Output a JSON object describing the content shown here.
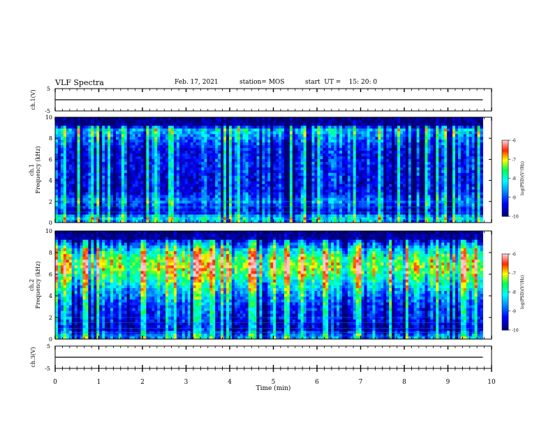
{
  "header": {
    "title": "VLF Spectra",
    "date": "Feb. 17, 2021",
    "station": "station= MOS",
    "start": "start  UT =    15: 20: 0"
  },
  "colors": {
    "spectrogram_background": "#000066",
    "trace": "#000000",
    "colormap": [
      "#00007f",
      "#0000ff",
      "#00ffff",
      "#00ff00",
      "#ffff00",
      "#ff0000",
      "#ffffff"
    ]
  },
  "chart_data": [
    {
      "type": "line",
      "panel": "ch1-voltage",
      "ylabel": "ch.1(V)",
      "yticks": [
        "5",
        "-5"
      ],
      "ylim": [
        -5,
        5
      ],
      "xlim": [
        0,
        10
      ],
      "series": [
        {
          "x": [
            0,
            9.8
          ],
          "values": [
            0,
            0
          ]
        }
      ]
    },
    {
      "type": "heatmap",
      "panel": "ch1-spectrogram",
      "ylabel_line1": "ch.1",
      "ylabel_line2": "Frequency (kHz)",
      "yticks": [
        "0",
        "2",
        "4",
        "6",
        "8",
        "10"
      ],
      "ylim": [
        0,
        10
      ],
      "xlim": [
        0,
        10
      ],
      "data_end_min": 9.8,
      "colorbar": {
        "label": "log(PSD)(V²/Hz)",
        "ticks": [
          "-6",
          "-7",
          "-8",
          "-9",
          "-10"
        ],
        "range": [
          -10,
          -6
        ]
      },
      "band_profile_khz": [
        [
          0,
          -8.5
        ],
        [
          0.5,
          -8.2
        ],
        [
          1,
          -9.6
        ],
        [
          2,
          -8.8
        ],
        [
          3,
          -9.5
        ],
        [
          5,
          -9.4
        ],
        [
          7,
          -9.4
        ],
        [
          8,
          -8.9
        ],
        [
          8.8,
          -8.4
        ],
        [
          9.3,
          -9.9
        ],
        [
          10,
          -10
        ]
      ]
    },
    {
      "type": "heatmap",
      "panel": "ch2-spectrogram",
      "ylabel_line1": "ch.2",
      "ylabel_line2": "Frequency (kHz)",
      "yticks": [
        "0",
        "2",
        "4",
        "6",
        "8",
        "10"
      ],
      "ylim": [
        0,
        10
      ],
      "xlim": [
        0,
        10
      ],
      "data_end_min": 9.8,
      "colorbar": {
        "label": "log(PSD)(V²/Hz)",
        "ticks": [
          "-6",
          "-7",
          "-8",
          "-9",
          "-10"
        ],
        "range": [
          -10,
          -6
        ]
      },
      "band_profile_khz": [
        [
          0,
          -8.6
        ],
        [
          0.5,
          -9.0
        ],
        [
          1,
          -9.7
        ],
        [
          2,
          -9.3
        ],
        [
          3,
          -9.2
        ],
        [
          4,
          -8.8
        ],
        [
          5,
          -8.3
        ],
        [
          6,
          -7.6
        ],
        [
          6.8,
          -7.3
        ],
        [
          7.5,
          -7.6
        ],
        [
          8.2,
          -8.2
        ],
        [
          8.8,
          -9.0
        ],
        [
          9.3,
          -9.8
        ],
        [
          10,
          -10
        ]
      ]
    },
    {
      "type": "line",
      "panel": "ch3-voltage",
      "ylabel": "ch.3(V)",
      "yticks": [
        "5",
        "-5"
      ],
      "ylim": [
        -5,
        5
      ],
      "xlim": [
        0,
        10
      ],
      "xlabel": "Time  (min)",
      "xticks": [
        "0",
        "1",
        "2",
        "3",
        "4",
        "5",
        "6",
        "7",
        "8",
        "9",
        "10"
      ],
      "series": [
        {
          "x": [
            0,
            9.8
          ],
          "values": [
            0,
            0
          ]
        }
      ]
    }
  ]
}
